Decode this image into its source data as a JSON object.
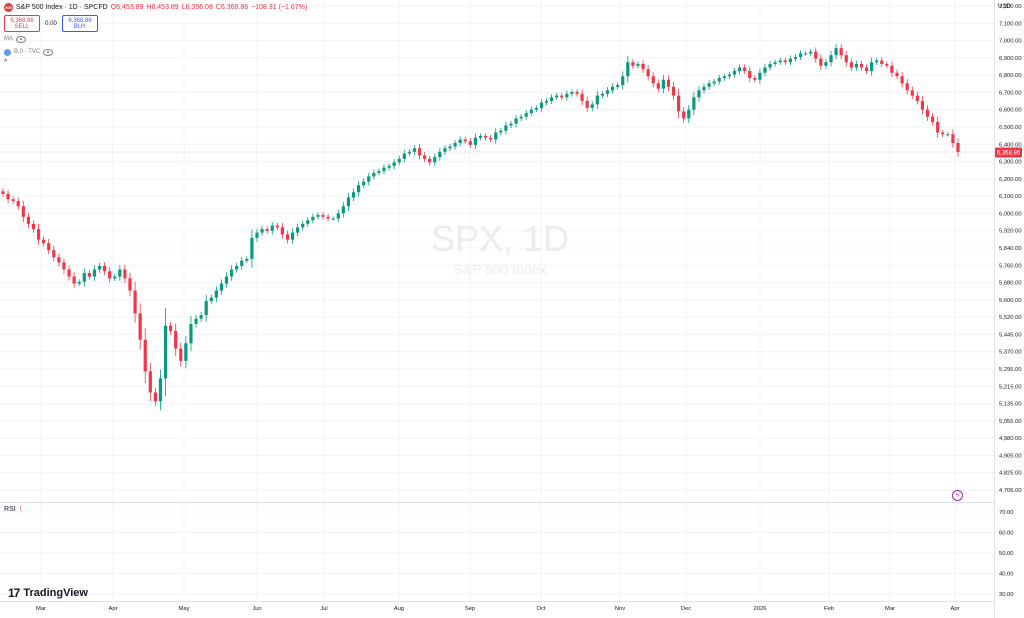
{
  "legend": {
    "symbol_icon": "500",
    "title": "S&P 500 Index · 1D · SPCFD",
    "o": "O6,453.89",
    "h": "H6,453.89",
    "l": "L6,356.08",
    "c": "C6,368.86",
    "change": "−108.31 (−1.67%)",
    "sell_price": "6,368.86",
    "sell_label": "SELL",
    "spread": "0.00",
    "buy_price": "6,368.86",
    "buy_label": "BUY",
    "indicator1": "MA",
    "indicator2": "B,0 · TVC",
    "collapse": "^"
  },
  "watermark": {
    "symbol": "SPX, 1D",
    "name": "S&P 500 Index"
  },
  "currency": "USD",
  "current_price_tag": "6,368.86",
  "rsi_label": "RSI",
  "rsi_warn": "!",
  "logo_text": "TradingView",
  "price_axis": [
    "7,200.00",
    "7,100.00",
    "7,000.00",
    "6,900.00",
    "6,800.00",
    "6,700.00",
    "6,600.00",
    "6,500.00",
    "6,400.00",
    "6,300.00",
    "6,200.00",
    "6,100.00",
    "6,000.00",
    "5,920.00",
    "5,840.00",
    "5,760.00",
    "5,680.00",
    "5,600.00",
    "5,520.00",
    "5,445.00",
    "5,370.00",
    "5,295.00",
    "5,215.00",
    "5,135.00",
    "5,055.00",
    "4,980.00",
    "4,905.00",
    "4,825.00",
    "4,706.00"
  ],
  "rsi_axis": [
    "70.00",
    "60.00",
    "50.00",
    "40.00",
    "30.00"
  ],
  "time_axis": [
    "Mar",
    "Apr",
    "May",
    "Jun",
    "Jul",
    "Aug",
    "Sep",
    "Oct",
    "Nov",
    "Dec",
    "2026",
    "Feb",
    "Mar",
    "Apr"
  ],
  "colors": {
    "up": "#089981",
    "down": "#f23645",
    "grid": "#f0f3fa",
    "border": "#e0e3eb"
  },
  "chart_data": {
    "type": "candlestick",
    "series_closes": [
      6130,
      6100,
      6090,
      6060,
      6000,
      5960,
      5930,
      5870,
      5850,
      5810,
      5770,
      5740,
      5700,
      5660,
      5620,
      5630,
      5680,
      5660,
      5700,
      5720,
      5690,
      5650,
      5660,
      5700,
      5650,
      5580,
      5450,
      5300,
      5120,
      5000,
      4950,
      5080,
      5380,
      5350,
      5250,
      5180,
      5280,
      5390,
      5420,
      5440,
      5520,
      5540,
      5580,
      5620,
      5660,
      5700,
      5720,
      5750,
      5760,
      5880,
      5910,
      5930,
      5920,
      5950,
      5940,
      5900,
      5870,
      5910,
      5940,
      5960,
      5980,
      6000,
      6010,
      6000,
      5990,
      5990,
      6020,
      6060,
      6110,
      6140,
      6180,
      6200,
      6230,
      6250,
      6260,
      6280,
      6290,
      6310,
      6330,
      6360,
      6370,
      6390,
      6350,
      6330,
      6310,
      6340,
      6370,
      6390,
      6400,
      6420,
      6440,
      6430,
      6410,
      6450,
      6460,
      6450,
      6440,
      6480,
      6490,
      6520,
      6530,
      6560,
      6570,
      6590,
      6610,
      6620,
      6650,
      6660,
      6680,
      6690,
      6680,
      6700,
      6710,
      6700,
      6660,
      6620,
      6640,
      6690,
      6700,
      6720,
      6740,
      6750,
      6800,
      6880,
      6860,
      6870,
      6840,
      6800,
      6760,
      6730,
      6780,
      6740,
      6690,
      6600,
      6560,
      6610,
      6680,
      6720,
      6740,
      6760,
      6770,
      6790,
      6800,
      6810,
      6830,
      6850,
      6830,
      6790,
      6780,
      6820,
      6850,
      6870,
      6880,
      6890,
      6880,
      6900,
      6910,
      6930,
      6930,
      6940,
      6900,
      6860,
      6880,
      6920,
      6960,
      6920,
      6880,
      6850,
      6870,
      6850,
      6830,
      6880,
      6890,
      6870,
      6860,
      6820,
      6800,
      6760,
      6720,
      6690,
      6660,
      6610,
      6570,
      6540,
      6480,
      6470,
      6470,
      6420,
      6368.86
    ]
  }
}
